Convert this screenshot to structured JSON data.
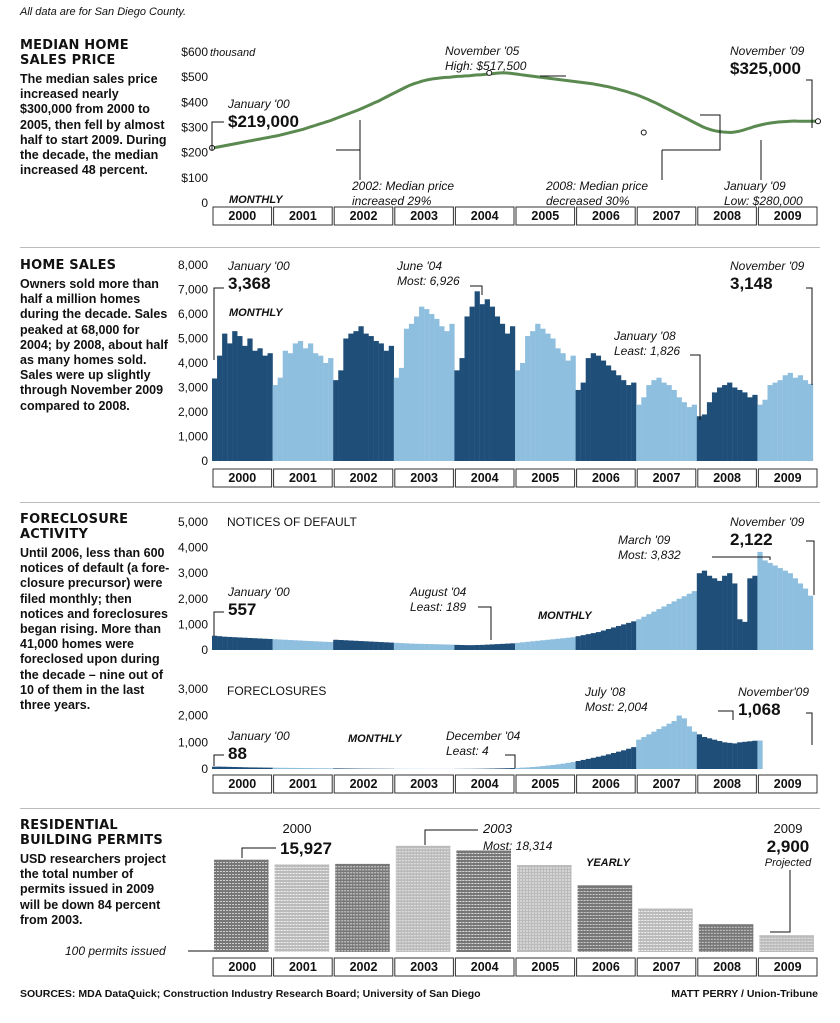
{
  "note": "All data are for San Diego County.",
  "sections": {
    "price": {
      "title": "MEDIAN HOME SALES PRICE",
      "text": "The median sales price increased nearly $300,000 from 2000 to 2005, then fell by almost half to start 2009. During the decade, the median increased 48 percent."
    },
    "sales": {
      "title": "HOME SALES",
      "text": "Owners sold more than half a million homes during the decade. Sales peaked at 68,000 for 2004; by 2008, about half as many homes sold. Sales were up slightly through November 2009 compared to 2008."
    },
    "foreclosure": {
      "title": "FORECLOSURE ACTIVITY",
      "text": "Until 2006, less than 600 notices of default (a fore-closure precursor) were filed monthly; then notices and foreclosures began rising. More than 41,000 homes were foreclosed upon during the decade – nine out of 10 of them in the last three years."
    },
    "permits": {
      "title": "RESIDENTIAL BUILDING PERMITS",
      "text": "USD researchers project the total number of permits issued in 2009 will be down 84 percent from 2003."
    }
  },
  "footer": {
    "sources": "SOURCES: MDA DataQuick; Construction Industry Research Board; University of San Diego",
    "credit": "MATT PERRY / Union-Tribune"
  },
  "colors": {
    "dark": "#1f4e79",
    "light": "#8fbfdf",
    "price_line": "#5a8a50",
    "permit_dark": "#777777",
    "permit_light": "#bbbbbb"
  },
  "chart_data": [
    {
      "type": "line",
      "title": "MEDIAN HOME SALES PRICE",
      "years": [
        "2000",
        "2001",
        "2002",
        "2003",
        "2004",
        "2005",
        "2006",
        "2007",
        "2008",
        "2009"
      ],
      "ytick_labels": [
        "$600",
        "$500",
        "$400",
        "$300",
        "$200",
        "$100",
        "0"
      ],
      "ytick_values": [
        600,
        500,
        400,
        300,
        200,
        100,
        0
      ],
      "y_unit_label": "thousand",
      "ylim": [
        0,
        600
      ],
      "label": "MONTHLY",
      "values": [
        219,
        221,
        224,
        227,
        230,
        233,
        236,
        239,
        242,
        245,
        248,
        251,
        254,
        257,
        260,
        263,
        266,
        269,
        273,
        277,
        281,
        285,
        289,
        293,
        298,
        303,
        308,
        313,
        318,
        323,
        328,
        334,
        340,
        346,
        352,
        358,
        364,
        370,
        377,
        384,
        391,
        398,
        405,
        413,
        421,
        429,
        437,
        445,
        453,
        461,
        468,
        474,
        479,
        484,
        488,
        491,
        494,
        496,
        498,
        499,
        500,
        502,
        503,
        504,
        505,
        506,
        508,
        509,
        510,
        511,
        513,
        514,
        516,
        517,
        517,
        516,
        514,
        512,
        510,
        508,
        506,
        504,
        502,
        500,
        498,
        496,
        494,
        492,
        490,
        488,
        486,
        484,
        482,
        480,
        478,
        476,
        474,
        471,
        468,
        465,
        462,
        458,
        454,
        450,
        446,
        441,
        436,
        431,
        425,
        419,
        412,
        405,
        398,
        390,
        382,
        374,
        366,
        358,
        350,
        342,
        334,
        326,
        318,
        310,
        302,
        296,
        291,
        287,
        284,
        282,
        281,
        280,
        282,
        285,
        289,
        294,
        299,
        304,
        308,
        312,
        315,
        318,
        320,
        322,
        323,
        324,
        325,
        326,
        325,
        325,
        325,
        325,
        325,
        325
      ],
      "annotations": [
        {
          "label1": "January '00",
          "label2": "$219,000"
        },
        {
          "label1": "November '05",
          "label2": "High: $517,500"
        },
        {
          "label1": "November '09",
          "label2": "$325,000"
        },
        {
          "label1": "2002: Median price",
          "label2": "increased 29%"
        },
        {
          "label1": "2008: Median price",
          "label2": "decreased 30%"
        },
        {
          "label1": "January '09",
          "label2": "Low: $280,000"
        }
      ]
    },
    {
      "type": "bar",
      "title": "HOME SALES",
      "years": [
        "2000",
        "2001",
        "2002",
        "2003",
        "2004",
        "2005",
        "2006",
        "2007",
        "2008",
        "2009"
      ],
      "ytick_labels": [
        "8,000",
        "7,000",
        "6,000",
        "5,000",
        "4,000",
        "3,000",
        "2,000",
        "1,000",
        "0"
      ],
      "ytick_values": [
        8000,
        7000,
        6000,
        5000,
        4000,
        3000,
        2000,
        1000,
        0
      ],
      "ylim": [
        0,
        8000
      ],
      "label": "MONTHLY",
      "values": [
        3368,
        4300,
        5200,
        4800,
        5300,
        5100,
        4700,
        5000,
        4500,
        4600,
        4300,
        4400,
        3100,
        3400,
        4500,
        4400,
        4800,
        4900,
        4600,
        4800,
        4400,
        4300,
        4000,
        4200,
        3300,
        3700,
        5000,
        5200,
        5300,
        5500,
        5200,
        5100,
        4900,
        4800,
        4500,
        4700,
        3400,
        3800,
        5400,
        5600,
        5900,
        6300,
        6200,
        6000,
        5800,
        5500,
        5300,
        5600,
        3700,
        4200,
        5900,
        6300,
        6926,
        6400,
        6600,
        6300,
        5900,
        5600,
        5200,
        5500,
        3700,
        4000,
        5100,
        5300,
        5600,
        5400,
        5200,
        5000,
        4600,
        4400,
        4100,
        4300,
        2900,
        3200,
        4200,
        4400,
        4300,
        4100,
        3900,
        3700,
        3500,
        3300,
        3100,
        3200,
        2300,
        2600,
        3100,
        3300,
        3400,
        3200,
        3100,
        2900,
        2600,
        2400,
        2200,
        2300,
        1826,
        1900,
        2400,
        2800,
        3000,
        3100,
        3200,
        3000,
        2900,
        2800,
        2600,
        2700,
        2300,
        2500,
        3100,
        3200,
        3300,
        3500,
        3600,
        3400,
        3500,
        3300,
        3148
      ],
      "annotations": [
        {
          "label1": "January '00",
          "label2": "3,368"
        },
        {
          "label1": "June '04",
          "label2": "Most: 6,926"
        },
        {
          "label1": "November '09",
          "label2": "3,148"
        },
        {
          "label1": "January '08",
          "label2": "Least: 1,826"
        }
      ]
    },
    {
      "type": "bar",
      "title": "NOTICES OF DEFAULT",
      "years": [
        "2000",
        "2001",
        "2002",
        "2003",
        "2004",
        "2005",
        "2006",
        "2007",
        "2008",
        "2009"
      ],
      "ytick_labels": [
        "5,000",
        "4,000",
        "3,000",
        "2,000",
        "1,000",
        "0"
      ],
      "ytick_values": [
        5000,
        4000,
        3000,
        2000,
        1000,
        0
      ],
      "ylim": [
        0,
        5000
      ],
      "label": "MONTHLY",
      "values": [
        557,
        540,
        520,
        510,
        500,
        490,
        480,
        470,
        460,
        450,
        440,
        430,
        420,
        410,
        400,
        390,
        380,
        370,
        360,
        350,
        340,
        330,
        320,
        310,
        400,
        390,
        380,
        370,
        360,
        350,
        340,
        330,
        320,
        310,
        300,
        290,
        280,
        270,
        260,
        250,
        245,
        240,
        235,
        230,
        225,
        220,
        215,
        210,
        200,
        195,
        190,
        189,
        195,
        200,
        210,
        220,
        230,
        240,
        250,
        260,
        280,
        300,
        320,
        340,
        360,
        380,
        400,
        420,
        440,
        460,
        480,
        500,
        540,
        580,
        620,
        660,
        700,
        760,
        820,
        880,
        940,
        1000,
        1060,
        1120,
        1200,
        1300,
        1400,
        1500,
        1600,
        1700,
        1800,
        1900,
        2000,
        2100,
        2200,
        2300,
        3000,
        3100,
        2900,
        2800,
        2700,
        2900,
        3000,
        2600,
        1200,
        1100,
        2800,
        2900,
        3832,
        3500,
        3400,
        3300,
        3200,
        3100,
        3000,
        2800,
        2600,
        2400,
        2122
      ],
      "annotations": [
        {
          "label1": "January '00",
          "label2": "557"
        },
        {
          "label1": "August '04",
          "label2": "Least: 189"
        },
        {
          "label1": "March '09",
          "label2": "Most: 3,832"
        },
        {
          "label1": "November '09",
          "label2": "2,122"
        }
      ]
    },
    {
      "type": "bar",
      "title": "FORECLOSURES",
      "years": [
        "2000",
        "2001",
        "2002",
        "2003",
        "2004",
        "2005",
        "2006",
        "2007",
        "2008",
        "2009"
      ],
      "ytick_labels": [
        "3,000",
        "2,000",
        "1,000",
        "0"
      ],
      "ytick_values": [
        3000,
        2000,
        1000,
        0
      ],
      "ylim": [
        0,
        3000
      ],
      "label": "MONTHLY",
      "values": [
        88,
        90,
        85,
        80,
        75,
        70,
        65,
        60,
        58,
        55,
        52,
        50,
        48,
        46,
        44,
        42,
        40,
        38,
        36,
        34,
        32,
        30,
        28,
        26,
        24,
        22,
        20,
        18,
        16,
        14,
        13,
        12,
        11,
        10,
        9,
        8,
        8,
        7,
        7,
        6,
        6,
        6,
        5,
        5,
        5,
        5,
        5,
        4,
        5,
        6,
        7,
        8,
        10,
        12,
        15,
        18,
        22,
        26,
        30,
        35,
        40,
        50,
        60,
        75,
        90,
        110,
        130,
        150,
        175,
        200,
        230,
        260,
        300,
        340,
        380,
        420,
        460,
        500,
        550,
        600,
        650,
        700,
        760,
        820,
        1100,
        1200,
        1300,
        1400,
        1500,
        1600,
        1700,
        1800,
        2004,
        1900,
        1600,
        1400,
        1300,
        1200,
        1150,
        1100,
        1050,
        1000,
        980,
        960,
        1000,
        1020,
        1040,
        1060,
        1068
      ],
      "annotations": [
        {
          "label1": "January '00",
          "label2": "88"
        },
        {
          "label1": "December '04",
          "label2": "Least: 4"
        },
        {
          "label1": "July '08",
          "label2": "Most: 2,004"
        },
        {
          "label1": "November'09",
          "label2": "1,068"
        }
      ]
    },
    {
      "type": "bar",
      "title": "RESIDENTIAL BUILDING PERMITS",
      "years": [
        "2000",
        "2001",
        "2002",
        "2003",
        "2004",
        "2005",
        "2006",
        "2007",
        "2008",
        "2009"
      ],
      "values": [
        15927,
        15100,
        15200,
        18314,
        17500,
        15000,
        11500,
        7500,
        4800,
        2900
      ],
      "label": "YEARLY",
      "legend": "100 permits issued",
      "annotations": [
        {
          "label1": "2000",
          "label2": "15,927"
        },
        {
          "label1": "2003",
          "label2": "Most: 18,314"
        },
        {
          "label1": "2009",
          "label2": "2,900",
          "label3": "Projected"
        }
      ]
    }
  ]
}
